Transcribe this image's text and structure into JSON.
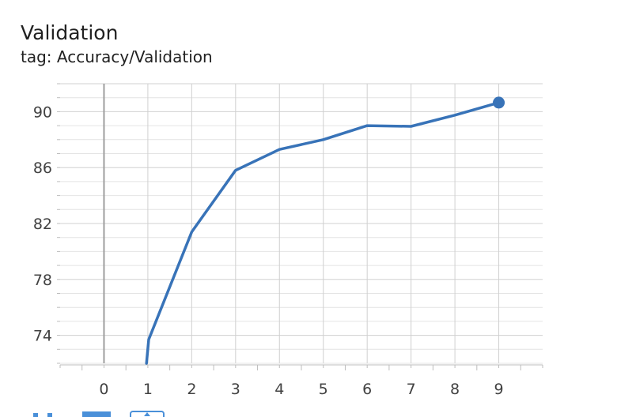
{
  "card": {
    "title": "Validation",
    "tag": "tag: Accuracy/Validation"
  },
  "toolbar": {
    "buttons": [
      {
        "name": "fit-domain-icon",
        "color": "#4a90d9"
      },
      {
        "name": "data-table-icon",
        "color": "#4a90d9"
      },
      {
        "name": "download-icon",
        "color": "#4a90d9"
      }
    ]
  },
  "chart_data": {
    "type": "line",
    "title": "Validation",
    "subtitle": "tag: Accuracy/Validation",
    "xlabel": "",
    "ylabel": "",
    "xlim": [
      -1,
      10
    ],
    "ylim": [
      72,
      92
    ],
    "xticks": [
      0,
      1,
      2,
      3,
      4,
      5,
      6,
      7,
      8,
      9
    ],
    "yticks": [
      74,
      78,
      82,
      86,
      90
    ],
    "grid": true,
    "series": [
      {
        "color": "#3873b8",
        "x": [
          0.97,
          1.02,
          2,
          3,
          4,
          5,
          6,
          7,
          8,
          9
        ],
        "y": [
          72.0,
          73.7,
          81.4,
          85.8,
          87.3,
          88.0,
          89.0,
          88.95,
          89.75,
          90.65
        ]
      }
    ],
    "marker_last_point": true
  }
}
